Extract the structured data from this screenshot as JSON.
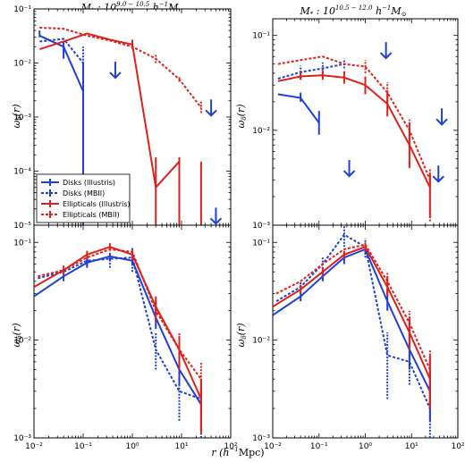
{
  "titles": {
    "left": "M_* : 10^{9.0-10.5} h^{-1} M_⊙",
    "right": "M_* : 10^{10.5-12.0} h^{-1} M_⊙"
  },
  "axes_text": {
    "xlabel": "r (h⁻¹Mpc)",
    "ylabel_top": "ω_δ(r)",
    "ylabel_bottom": "ω_δ(r)"
  },
  "legend": [
    {
      "label": "Disks (Illustris)",
      "color": "#1f3fd6",
      "dash": false
    },
    {
      "label": "Disks (MBII)",
      "color": "#1f3fd6",
      "dash": true
    },
    {
      "label": "Ellipticals (Illustris)",
      "color": "#e0201b",
      "dash": false
    },
    {
      "label": "Ellipticals (MBII)",
      "color": "#e0201b",
      "dash": true
    }
  ],
  "colors": {
    "disk": "#1f3fd6",
    "elliptical": "#e0201b"
  },
  "chart_data": [
    {
      "panel": "top-left",
      "type": "line",
      "xlim": [
        0.01,
        100
      ],
      "ylim": [
        1e-05,
        0.1
      ],
      "xscale": "log",
      "yscale": "log",
      "xticks": [
        "10⁻²",
        "10⁻¹",
        "10⁰",
        "10¹",
        "10²"
      ],
      "yticks": [
        "10⁻⁵",
        "10⁻⁴",
        "10⁻³",
        "10⁻²",
        "10⁻¹"
      ],
      "legend_position": "lower-left",
      "series": [
        {
          "name": "Disks (Illustris)",
          "kind": "disk",
          "dash": false,
          "x": [
            0.013,
            0.04,
            0.1
          ],
          "y": [
            0.032,
            0.02,
            0.003
          ],
          "err": [
            [
              0.03,
              0.04
            ],
            [
              0.012,
              0.025
            ],
            [
              1e-05,
              0.01
            ]
          ]
        },
        {
          "name": "Disks (MBII)",
          "kind": "disk",
          "dash": true,
          "x": [
            0.013,
            0.04,
            0.1
          ],
          "y": [
            0.025,
            0.028,
            0.01
          ],
          "err": [
            null,
            null,
            [
              0.005,
              0.02
            ]
          ]
        },
        {
          "name": "Ellipticals (Illustris)",
          "kind": "elliptical",
          "dash": false,
          "x": [
            0.013,
            0.04,
            0.12,
            0.35,
            1.0,
            3.0,
            9.0,
            25.0
          ],
          "y": [
            0.018,
            0.025,
            0.035,
            0.027,
            0.022,
            5e-05,
            0.00015,
            null
          ],
          "err": [
            null,
            null,
            null,
            null,
            [
              0.018,
              0.027
            ],
            [
              1e-05,
              0.00018
            ],
            [
              1e-05,
              0.00018
            ],
            [
              1e-05,
              0.00015
            ]
          ]
        },
        {
          "name": "Ellipticals (MBII)",
          "kind": "elliptical",
          "dash": true,
          "x": [
            0.013,
            0.04,
            0.12,
            0.35,
            1.0,
            3.0,
            9.0,
            25.0
          ],
          "y": [
            0.045,
            0.043,
            0.032,
            0.026,
            0.02,
            0.012,
            0.005,
            0.0015
          ],
          "err": [
            null,
            null,
            null,
            null,
            null,
            [
              0.01,
              0.014
            ],
            [
              0.0045,
              0.0055
            ],
            [
              0.0012,
              0.002
            ]
          ]
        }
      ],
      "arrows": [
        {
          "x": 0.45,
          "y": 0.0075,
          "kind": "disk"
        },
        {
          "x": 40,
          "y": 0.0015,
          "kind": "disk"
        },
        {
          "x": 50,
          "y": 1.5e-05,
          "kind": "disk"
        }
      ]
    },
    {
      "panel": "top-right",
      "type": "line",
      "xlim": [
        0.01,
        100
      ],
      "ylim": [
        0.001,
        0.15
      ],
      "xscale": "log",
      "yscale": "log",
      "xticks": [
        "10⁻²",
        "10⁻¹",
        "10⁰",
        "10¹",
        "10²"
      ],
      "yticks": [
        "10⁻³",
        "10⁻²",
        "10⁻¹"
      ],
      "series": [
        {
          "name": "Disks (Illustris)",
          "kind": "disk",
          "dash": false,
          "x": [
            0.013,
            0.04,
            0.1
          ],
          "y": [
            0.024,
            0.022,
            0.012
          ],
          "err": [
            null,
            [
              0.02,
              0.025
            ],
            [
              0.009,
              0.016
            ]
          ]
        },
        {
          "name": "Disks (MBII)",
          "kind": "disk",
          "dash": true,
          "x": [
            0.013,
            0.04,
            0.12,
            0.35
          ],
          "y": [
            0.035,
            0.041,
            0.045,
            0.05
          ],
          "err": [
            null,
            [
              0.035,
              0.048
            ],
            [
              0.04,
              0.052
            ],
            [
              0.045,
              0.057
            ]
          ]
        },
        {
          "name": "Ellipticals (Illustris)",
          "kind": "elliptical",
          "dash": false,
          "x": [
            0.013,
            0.04,
            0.12,
            0.35,
            1.0,
            3.0,
            9.0,
            25.0
          ],
          "y": [
            0.033,
            0.037,
            0.038,
            0.036,
            0.03,
            0.019,
            0.007,
            0.0025
          ],
          "err": [
            null,
            [
              0.034,
              0.041
            ],
            [
              0.034,
              0.043
            ],
            [
              0.031,
              0.042
            ],
            [
              0.024,
              0.037
            ],
            [
              0.014,
              0.026
            ],
            [
              0.004,
              0.012
            ],
            [
              0.0012,
              0.0035
            ]
          ]
        },
        {
          "name": "Ellipticals (MBII)",
          "kind": "elliptical",
          "dash": true,
          "x": [
            0.013,
            0.04,
            0.12,
            0.35,
            1.0,
            3.0,
            9.0,
            25.0
          ],
          "y": [
            0.05,
            0.055,
            0.06,
            0.05,
            0.047,
            0.025,
            0.01,
            0.003
          ],
          "err": [
            null,
            null,
            null,
            null,
            [
              0.04,
              0.055
            ],
            [
              0.02,
              0.032
            ],
            [
              0.008,
              0.013
            ],
            [
              0.0011,
              0.004
            ]
          ]
        }
      ],
      "arrows": [
        {
          "x": 2.8,
          "y": 0.07,
          "kind": "disk"
        },
        {
          "x": 0.45,
          "y": 0.004,
          "kind": "disk"
        },
        {
          "x": 45,
          "y": 0.014,
          "kind": "disk"
        },
        {
          "x": 38,
          "y": 0.0035,
          "kind": "disk"
        }
      ]
    },
    {
      "panel": "bottom-left",
      "type": "line",
      "xlim": [
        0.01,
        100
      ],
      "ylim": [
        0.001,
        0.15
      ],
      "xscale": "log",
      "yscale": "log",
      "xticks": [
        "10⁻²",
        "10⁻¹",
        "10⁰",
        "10¹",
        "10²"
      ],
      "yticks": [
        "10⁻³",
        "10⁻²",
        "10⁻¹"
      ],
      "series": [
        {
          "name": "Disks (Illustris)",
          "kind": "disk",
          "dash": false,
          "x": [
            0.01,
            0.04,
            0.12,
            0.35,
            1.0,
            3.0,
            9.0,
            25.0
          ],
          "y": [
            0.028,
            0.045,
            0.062,
            0.072,
            0.065,
            0.017,
            0.005,
            0.0022
          ],
          "err": [
            null,
            [
              0.04,
              0.05
            ],
            [
              0.056,
              0.069
            ],
            [
              0.066,
              0.078
            ],
            [
              0.058,
              0.073
            ],
            [
              0.013,
              0.022
            ],
            [
              0.0035,
              0.0075
            ],
            [
              0.0012,
              0.0035
            ]
          ]
        },
        {
          "name": "Disks (MBII)",
          "kind": "disk",
          "dash": true,
          "x": [
            0.012,
            0.04,
            0.12,
            0.35,
            1.0,
            3.0,
            9.0,
            25.0
          ],
          "y": [
            0.043,
            0.05,
            0.065,
            0.068,
            0.07,
            0.008,
            0.003,
            0.0025
          ],
          "err": [
            null,
            null,
            [
              0.055,
              0.08
            ],
            [
              0.055,
              0.08
            ],
            [
              0.05,
              0.09
            ],
            [
              0.005,
              0.012
            ],
            [
              0.0015,
              0.005
            ],
            [
              0.001,
              0.004
            ]
          ]
        },
        {
          "name": "Ellipticals (Illustris)",
          "kind": "elliptical",
          "dash": false,
          "x": [
            0.01,
            0.04,
            0.12,
            0.35,
            1.0,
            3.0,
            9.0,
            25.0
          ],
          "y": [
            0.035,
            0.052,
            0.075,
            0.09,
            0.075,
            0.022,
            0.008,
            0.0025
          ],
          "err": [
            null,
            [
              0.046,
              0.058
            ],
            [
              0.068,
              0.082
            ],
            [
              0.082,
              0.098
            ],
            [
              0.067,
              0.084
            ],
            [
              0.017,
              0.028
            ],
            [
              0.005,
              0.011
            ],
            [
              0.0011,
              0.004
            ]
          ]
        },
        {
          "name": "Ellipticals (MBII)",
          "kind": "elliptical",
          "dash": true,
          "x": [
            0.012,
            0.04,
            0.12,
            0.35,
            1.0,
            3.0,
            9.0,
            25.0
          ],
          "y": [
            0.045,
            0.052,
            0.07,
            0.085,
            0.08,
            0.02,
            0.008,
            0.004
          ],
          "err": [
            null,
            null,
            null,
            null,
            null,
            [
              0.015,
              0.026
            ],
            [
              0.005,
              0.012
            ],
            [
              0.002,
              0.006
            ]
          ]
        }
      ]
    },
    {
      "panel": "bottom-right",
      "type": "line",
      "xlim": [
        0.01,
        100
      ],
      "ylim": [
        0.001,
        0.15
      ],
      "xscale": "log",
      "yscale": "log",
      "xticks": [
        "10⁻²",
        "10⁻¹",
        "10⁰",
        "10¹",
        "10²"
      ],
      "yticks": [
        "10⁻³",
        "10⁻²",
        "10⁻¹"
      ],
      "series": [
        {
          "name": "Disks (Illustris)",
          "kind": "disk",
          "dash": false,
          "x": [
            0.01,
            0.04,
            0.12,
            0.35,
            1.0,
            3.0,
            9.0,
            25.0
          ],
          "y": [
            0.018,
            0.028,
            0.045,
            0.07,
            0.085,
            0.025,
            0.008,
            0.003
          ],
          "err": [
            null,
            [
              0.025,
              0.031
            ],
            [
              0.04,
              0.05
            ],
            [
              0.06,
              0.08
            ],
            [
              0.075,
              0.095
            ],
            [
              0.02,
              0.032
            ],
            [
              0.005,
              0.012
            ],
            [
              0.0015,
              0.005
            ]
          ]
        },
        {
          "name": "Disks (MBII)",
          "kind": "disk",
          "dash": true,
          "x": [
            0.012,
            0.04,
            0.12,
            0.35,
            1.0,
            3.0,
            9.0,
            25.0
          ],
          "y": [
            0.025,
            0.035,
            0.06,
            0.12,
            0.09,
            0.007,
            0.006,
            0.002
          ],
          "err": [
            null,
            [
              0.03,
              0.04
            ],
            [
              0.05,
              0.07
            ],
            [
              0.09,
              0.15
            ],
            [
              0.07,
              0.11
            ],
            [
              0.0025,
              0.012
            ],
            [
              0.0035,
              0.009
            ],
            [
              0.001,
              0.004
            ]
          ]
        },
        {
          "name": "Ellipticals (Illustris)",
          "kind": "elliptical",
          "dash": false,
          "x": [
            0.01,
            0.04,
            0.12,
            0.35,
            1.0,
            3.0,
            9.0,
            25.0
          ],
          "y": [
            0.022,
            0.033,
            0.05,
            0.075,
            0.09,
            0.035,
            0.012,
            0.004
          ],
          "err": [
            null,
            [
              0.03,
              0.037
            ],
            [
              0.045,
              0.056
            ],
            [
              0.068,
              0.082
            ],
            [
              0.082,
              0.1
            ],
            [
              0.028,
              0.045
            ],
            [
              0.008,
              0.017
            ],
            [
              0.002,
              0.007
            ]
          ]
        },
        {
          "name": "Ellipticals (MBII)",
          "kind": "elliptical",
          "dash": true,
          "x": [
            0.012,
            0.04,
            0.12,
            0.35,
            1.0,
            3.0,
            9.0,
            25.0
          ],
          "y": [
            0.03,
            0.04,
            0.06,
            0.085,
            0.095,
            0.04,
            0.015,
            0.005
          ],
          "err": [
            null,
            null,
            null,
            null,
            null,
            [
              0.03,
              0.05
            ],
            [
              0.01,
              0.02
            ],
            [
              0.002,
              0.008
            ]
          ]
        }
      ]
    }
  ]
}
